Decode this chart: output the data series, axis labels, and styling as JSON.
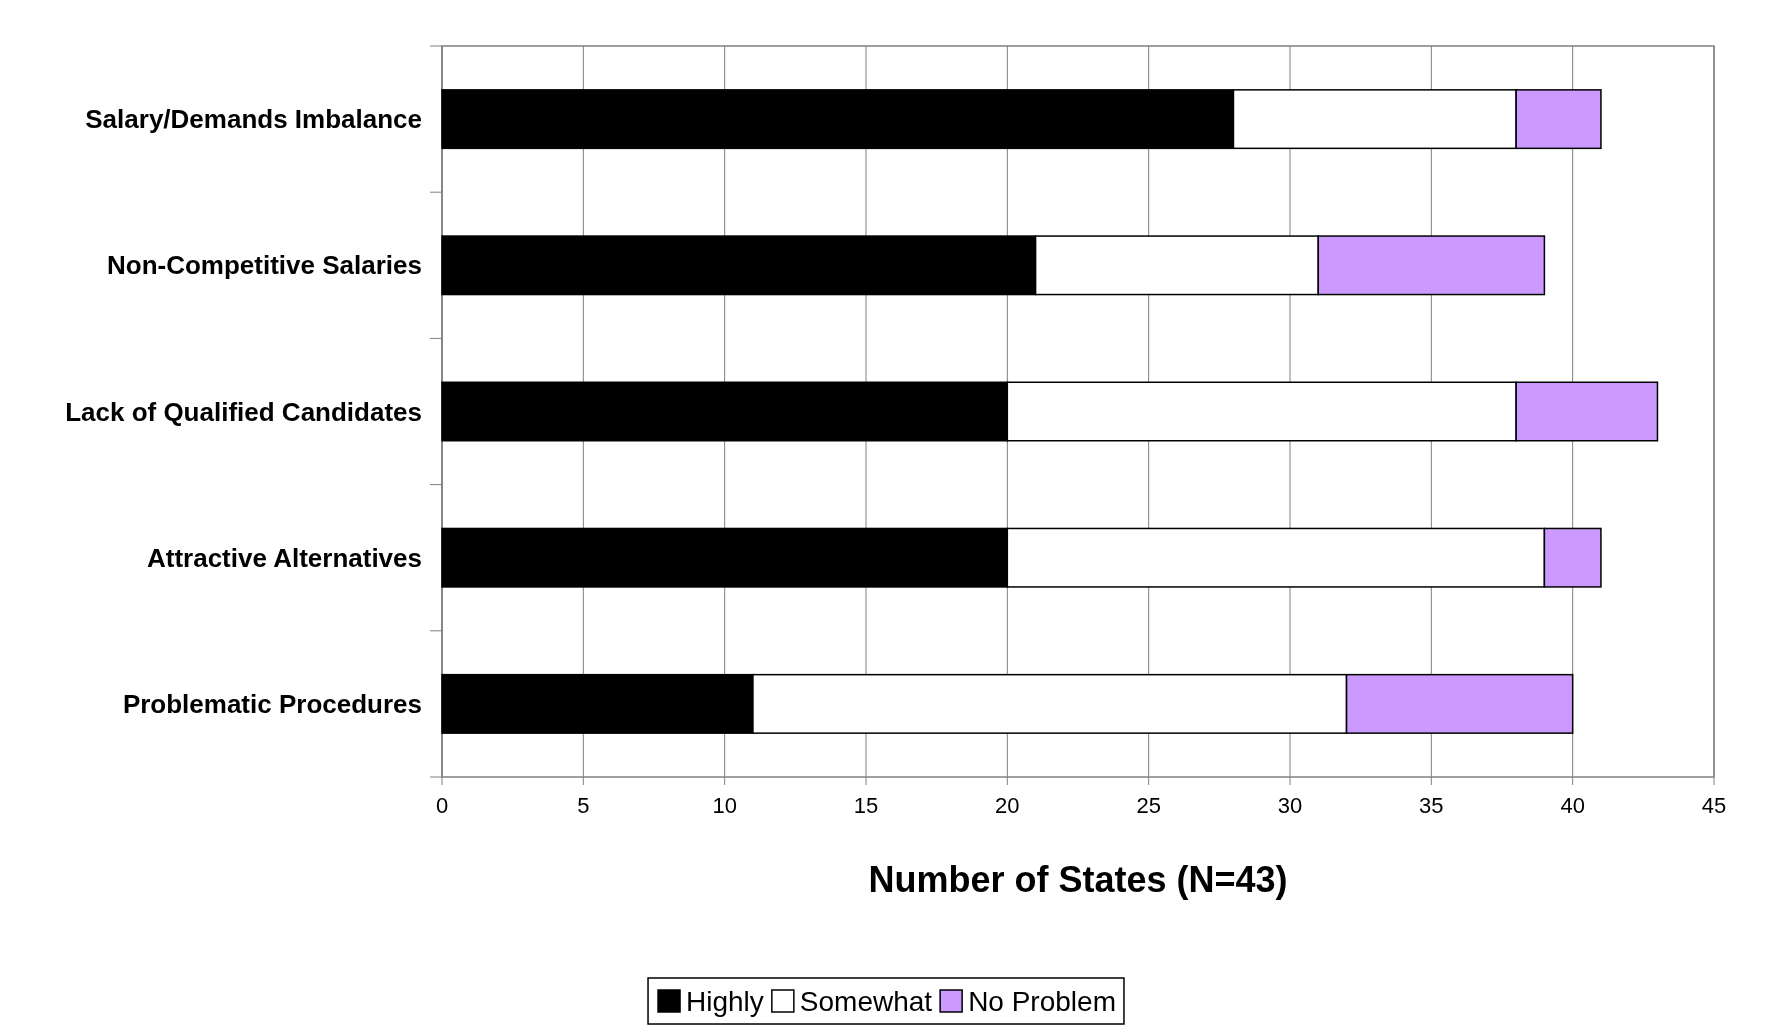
{
  "chart_data": {
    "type": "bar",
    "orientation": "horizontal",
    "stacked": true,
    "categories": [
      "Salary/Demands Imbalance",
      "Non-Competitive Salaries",
      "Lack of Qualified Candidates",
      "Attractive Alternatives",
      "Problematic Procedures"
    ],
    "series": [
      {
        "name": "Highly",
        "color": "#000000",
        "values": [
          28,
          21,
          20,
          20,
          11
        ]
      },
      {
        "name": "Somewhat",
        "color": "#ffffff",
        "values": [
          10,
          10,
          18,
          19,
          21
        ]
      },
      {
        "name": "No Problem",
        "color": "#cc99ff",
        "values": [
          3,
          8,
          5,
          2,
          8
        ]
      }
    ],
    "xlabel": "Number of States (N=43)",
    "xlim": [
      0,
      45
    ],
    "xticks": [
      0,
      5,
      10,
      15,
      20,
      25,
      30,
      35,
      40,
      45
    ],
    "grid": "x",
    "legend": "bottom"
  }
}
